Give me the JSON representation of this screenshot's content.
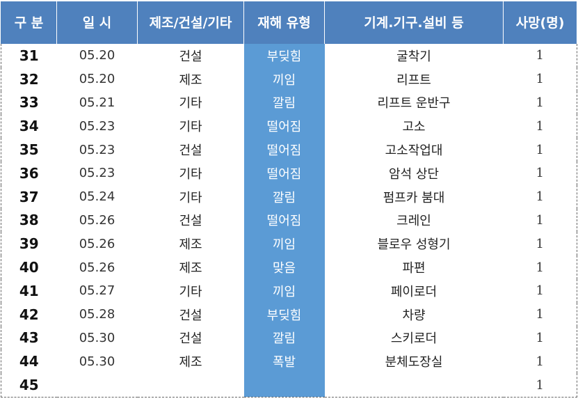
{
  "header": {
    "col_no": "구 분",
    "col_date": "일  시",
    "col_industry": "제조/건설/기타",
    "col_type": "재해 유형",
    "col_equipment": "기계.기구.설비 등",
    "col_deaths": "사망(명)"
  },
  "rows": [
    {
      "no": "31",
      "date": "05.20",
      "industry": "건설",
      "type": "부딪힘",
      "equipment": "굴착기",
      "deaths": "1"
    },
    {
      "no": "32",
      "date": "05.20",
      "industry": "제조",
      "type": "끼임",
      "equipment": "리프트",
      "deaths": "1"
    },
    {
      "no": "33",
      "date": "05.21",
      "industry": "기타",
      "type": "깔림",
      "equipment": "리프트 운반구",
      "deaths": "1"
    },
    {
      "no": "34",
      "date": "05.23",
      "industry": "기타",
      "type": "떨어짐",
      "equipment": "고소",
      "deaths": "1"
    },
    {
      "no": "35",
      "date": "05.23",
      "industry": "건설",
      "type": "떨어짐",
      "equipment": "고소작업대",
      "deaths": "1"
    },
    {
      "no": "36",
      "date": "05.23",
      "industry": "기타",
      "type": "떨어짐",
      "equipment": "암석 상단",
      "deaths": "1"
    },
    {
      "no": "37",
      "date": "05.24",
      "industry": "기타",
      "type": "깔림",
      "equipment": "펌프카 붐대",
      "deaths": "1"
    },
    {
      "no": "38",
      "date": "05.26",
      "industry": "건설",
      "type": "떨어짐",
      "equipment": "크레인",
      "deaths": "1"
    },
    {
      "no": "39",
      "date": "05.26",
      "industry": "제조",
      "type": "끼임",
      "equipment": "블로우 성형기",
      "deaths": "1"
    },
    {
      "no": "40",
      "date": "05.26",
      "industry": "제조",
      "type": "맞음",
      "equipment": "파편",
      "deaths": "1"
    },
    {
      "no": "41",
      "date": "05.27",
      "industry": "기타",
      "type": "끼임",
      "equipment": "페이로더",
      "deaths": "1"
    },
    {
      "no": "42",
      "date": "05.28",
      "industry": "건설",
      "type": "부딪힘",
      "equipment": "차량",
      "deaths": "1"
    },
    {
      "no": "43",
      "date": "05.30",
      "industry": "건설",
      "type": "깔림",
      "equipment": "스키로더",
      "deaths": "1"
    },
    {
      "no": "44",
      "date": "05.30",
      "industry": "제조",
      "type": "폭발",
      "equipment": "분체도장실",
      "deaths": "1"
    },
    {
      "no": "45",
      "date": "",
      "industry": "",
      "type": "",
      "equipment": "",
      "deaths": "1"
    }
  ]
}
